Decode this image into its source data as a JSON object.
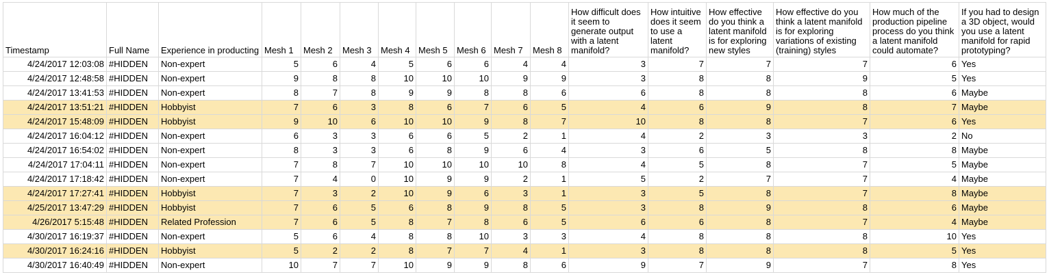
{
  "sheet": {
    "columns": [
      "Timestamp",
      "Full Name",
      "Experience in producting",
      "Mesh 1",
      "Mesh 2",
      "Mesh 3",
      "Mesh 4",
      "Mesh 5",
      "Mesh 6",
      "Mesh 7",
      "Mesh 8",
      "How difficult does it seem to generate output with a latent manifold?",
      "How intuitive does it seem to use a latent manifold?",
      "How effective do you think a latent manifold is for exploring new styles",
      "How effective do you think a latent manifold is for exploring variations of existing (training) styles",
      "How much of the production pipeline process do you think a latent manifold could automate?",
      "If you had to design a 3D object, would you use a latent manifold for rapid prototyping?"
    ],
    "highlight_color": "#fce8b2",
    "rows": [
      {
        "highlight": false,
        "cells": [
          "4/24/2017 12:03:08",
          "#HIDDEN",
          "Non-expert",
          "5",
          "6",
          "4",
          "5",
          "6",
          "6",
          "4",
          "4",
          "3",
          "7",
          "7",
          "7",
          "6",
          "Yes"
        ]
      },
      {
        "highlight": false,
        "cells": [
          "4/24/2017 12:48:58",
          "#HIDDEN",
          "Non-expert",
          "9",
          "8",
          "8",
          "10",
          "10",
          "10",
          "9",
          "9",
          "3",
          "8",
          "8",
          "9",
          "5",
          "Yes"
        ]
      },
      {
        "highlight": false,
        "cells": [
          "4/24/2017 13:41:53",
          "#HIDDEN",
          "Non-expert",
          "8",
          "7",
          "8",
          "9",
          "9",
          "8",
          "8",
          "6",
          "6",
          "8",
          "8",
          "8",
          "6",
          "Maybe"
        ]
      },
      {
        "highlight": true,
        "cells": [
          "4/24/2017 13:51:21",
          "#HIDDEN",
          "Hobbyist",
          "7",
          "6",
          "3",
          "8",
          "6",
          "7",
          "6",
          "5",
          "4",
          "6",
          "9",
          "8",
          "7",
          "Maybe"
        ]
      },
      {
        "highlight": true,
        "cells": [
          "4/24/2017 15:48:09",
          "#HIDDEN",
          "Hobbyist",
          "9",
          "10",
          "6",
          "10",
          "10",
          "9",
          "8",
          "7",
          "10",
          "8",
          "8",
          "7",
          "6",
          "Yes"
        ]
      },
      {
        "highlight": false,
        "cells": [
          "4/24/2017 16:04:12",
          "#HIDDEN",
          "Non-expert",
          "6",
          "3",
          "3",
          "6",
          "6",
          "5",
          "2",
          "1",
          "4",
          "2",
          "3",
          "3",
          "2",
          "No"
        ]
      },
      {
        "highlight": false,
        "cells": [
          "4/24/2017 16:54:02",
          "#HIDDEN",
          "Non-expert",
          "8",
          "3",
          "3",
          "6",
          "8",
          "9",
          "6",
          "4",
          "3",
          "6",
          "5",
          "8",
          "8",
          "Maybe"
        ]
      },
      {
        "highlight": false,
        "cells": [
          "4/24/2017 17:04:11",
          "#HIDDEN",
          "Non-expert",
          "7",
          "8",
          "7",
          "10",
          "10",
          "10",
          "10",
          "8",
          "4",
          "5",
          "8",
          "7",
          "5",
          "Maybe"
        ]
      },
      {
        "highlight": false,
        "cells": [
          "4/24/2017 17:18:42",
          "#HIDDEN",
          "Non-expert",
          "7",
          "4",
          "0",
          "10",
          "9",
          "9",
          "2",
          "1",
          "5",
          "2",
          "7",
          "7",
          "4",
          "Maybe"
        ]
      },
      {
        "highlight": true,
        "cells": [
          "4/24/2017 17:27:41",
          "#HIDDEN",
          "Hobbyist",
          "7",
          "3",
          "2",
          "10",
          "9",
          "6",
          "3",
          "1",
          "3",
          "5",
          "8",
          "7",
          "8",
          "Maybe"
        ]
      },
      {
        "highlight": true,
        "cells": [
          "4/25/2017 13:47:29",
          "#HIDDEN",
          "Hobbyist",
          "7",
          "6",
          "5",
          "6",
          "8",
          "9",
          "8",
          "5",
          "3",
          "8",
          "9",
          "8",
          "6",
          "Maybe"
        ]
      },
      {
        "highlight": true,
        "cells": [
          "4/26/2017 5:15:48",
          "#HIDDEN",
          "Related Profession",
          "7",
          "6",
          "5",
          "8",
          "7",
          "8",
          "6",
          "5",
          "6",
          "6",
          "8",
          "7",
          "4",
          "Maybe"
        ]
      },
      {
        "highlight": false,
        "cells": [
          "4/30/2017 16:19:37",
          "#HIDDEN",
          "Non-expert",
          "5",
          "6",
          "4",
          "8",
          "8",
          "10",
          "3",
          "3",
          "4",
          "8",
          "8",
          "8",
          "10",
          "Yes"
        ]
      },
      {
        "highlight": true,
        "cells": [
          "4/30/2017 16:24:16",
          "#HIDDEN",
          "Hobbyist",
          "5",
          "2",
          "2",
          "8",
          "7",
          "7",
          "4",
          "1",
          "3",
          "8",
          "8",
          "8",
          "5",
          "Yes"
        ]
      },
      {
        "highlight": false,
        "cells": [
          "4/30/2017 16:40:49",
          "#HIDDEN",
          "Non-expert",
          "10",
          "7",
          "7",
          "10",
          "9",
          "9",
          "8",
          "6",
          "9",
          "7",
          "9",
          "7",
          "8",
          "Yes"
        ]
      }
    ]
  }
}
